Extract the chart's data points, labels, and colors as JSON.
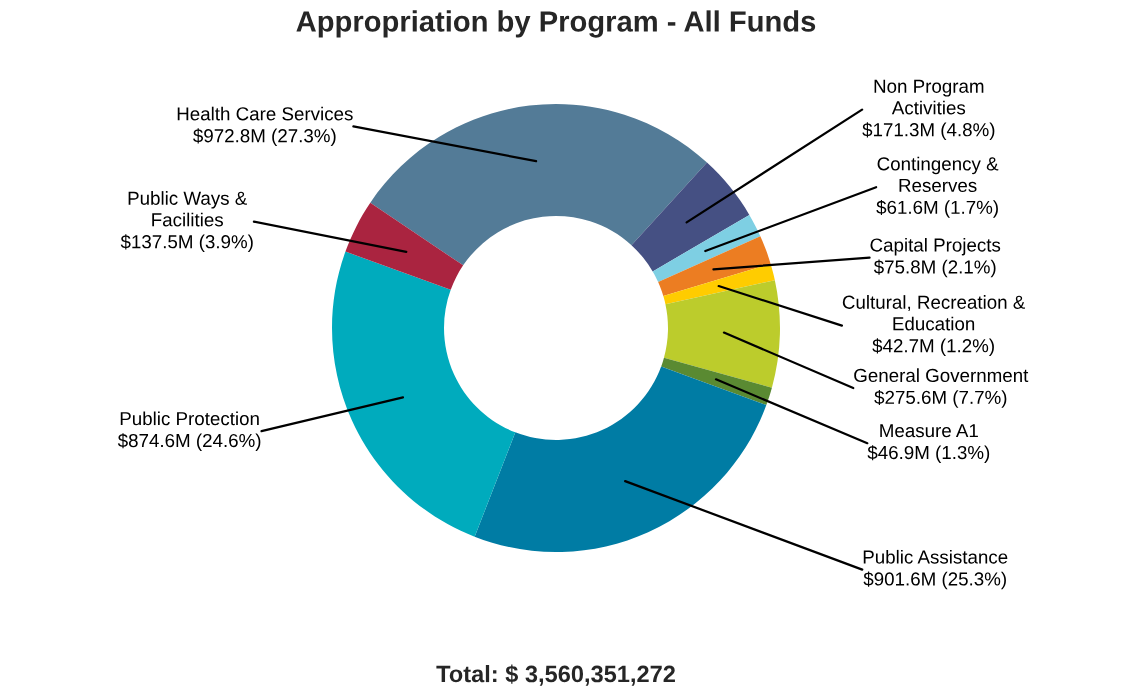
{
  "chart_data": {
    "type": "donut",
    "title": "Appropriation by Program - All Funds",
    "categories": [
      "Health Care Services",
      "Non Program\nActivities",
      "Contingency &\nReserves",
      "Capital Projects",
      "Cultural, Recreation &\nEducation",
      "General Government",
      "Measure A1",
      "Public Assistance",
      "Public Protection",
      "Public Ways &\nFacilities"
    ],
    "values": [
      27.3,
      4.8,
      1.7,
      2.1,
      1.2,
      7.7,
      1.3,
      25.3,
      24.6,
      3.9
    ],
    "value_labels": [
      "$972.8M (27.3%)",
      "$171.3M (4.8%)",
      "$61.6M (1.7%)",
      "$75.8M (2.1%)",
      "$42.7M (1.2%)",
      "$275.6M (7.7%)",
      "$46.9M (1.3%)",
      "$901.6M (25.3%)",
      "$874.6M (24.6%)",
      "$137.5M (3.9%)"
    ],
    "colors": [
      "#537b97",
      "#455083",
      "#7ecfe3",
      "#ec7d22",
      "#ffcc00",
      "#bccc2c",
      "#5a8a32",
      "#007ca4",
      "#00abbd",
      "#aa2440"
    ],
    "annotations": [
      "Total: $ 3,560,351,272"
    ]
  }
}
